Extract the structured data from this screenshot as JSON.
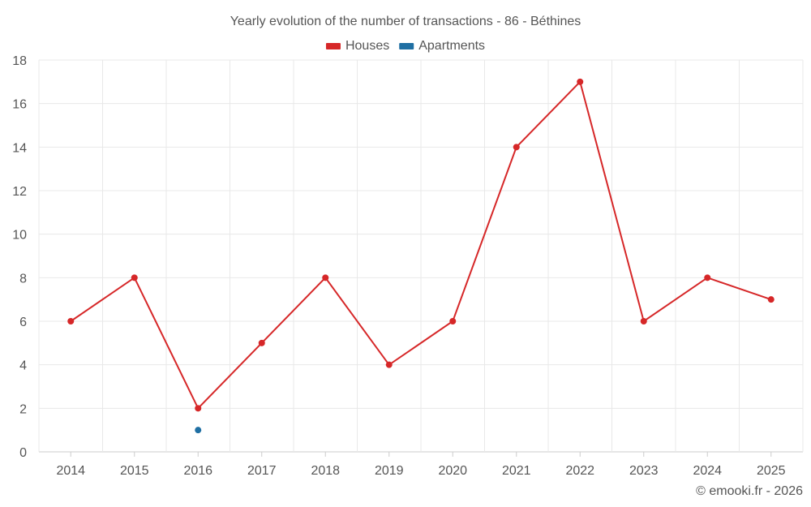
{
  "chart_data": {
    "type": "line",
    "title": "Yearly evolution of the number of transactions - 86 - Béthines",
    "categories": [
      "2014",
      "2015",
      "2016",
      "2017",
      "2018",
      "2019",
      "2020",
      "2021",
      "2022",
      "2023",
      "2024",
      "2025"
    ],
    "series": [
      {
        "name": "Houses",
        "color": "#d62728",
        "values": [
          6,
          8,
          2,
          5,
          8,
          4,
          6,
          14,
          17,
          6,
          8,
          7
        ]
      },
      {
        "name": "Apartments",
        "color": "#1f6fa3",
        "values": [
          null,
          null,
          1,
          null,
          null,
          null,
          null,
          null,
          null,
          null,
          null,
          null
        ]
      }
    ],
    "ylim": [
      0,
      18
    ],
    "yticks": [
      0,
      2,
      4,
      6,
      8,
      10,
      12,
      14,
      16,
      18
    ],
    "xlabel": "",
    "ylabel": "",
    "grid": true,
    "legend": "top-center"
  },
  "credit": "© emooki.fr - 2026"
}
